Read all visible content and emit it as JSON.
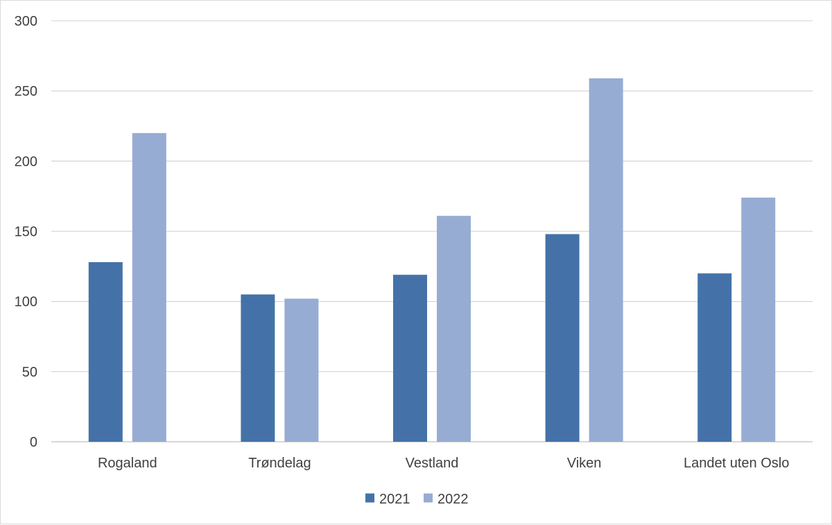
{
  "chart_data": {
    "type": "bar",
    "title": "",
    "xlabel": "",
    "ylabel": "",
    "categories": [
      "Rogaland",
      "Trøndelag",
      "Vestland",
      "Viken",
      "Landet uten Oslo"
    ],
    "series": [
      {
        "name": "2021",
        "values": [
          128,
          105,
          119,
          148,
          120
        ],
        "color": "#4472a8"
      },
      {
        "name": "2022",
        "values": [
          220,
          102,
          161,
          259,
          174
        ],
        "color": "#97acd3"
      }
    ],
    "ylim": [
      0,
      300
    ],
    "yticks": [
      0,
      50,
      100,
      150,
      200,
      250,
      300
    ],
    "grid": true,
    "legend_position": "bottom",
    "gridline_color": "#d9d9d9",
    "axis_color": "#bfbfbf"
  }
}
